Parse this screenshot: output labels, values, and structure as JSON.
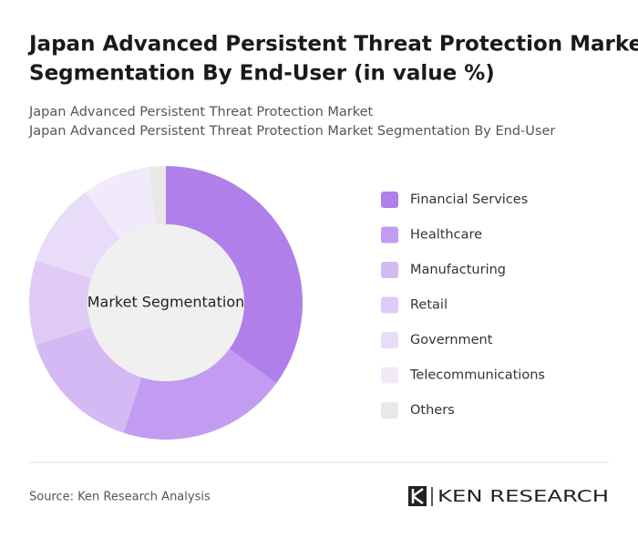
{
  "chart_data": {
    "type": "donut",
    "title": [
      "Japan Advanced Persistent Threat Protection Market",
      "Segmentation By End-User (in value %)"
    ],
    "subtitle": [
      "Japan Advanced Persistent Threat Protection Market",
      "Japan Advanced Persistent Threat Protection Market Segmentation By End-User"
    ],
    "center_label": "Market Segmentation",
    "categories": [
      "Financial Services",
      "Healthcare",
      "Manufacturing",
      "Retail",
      "Government",
      "Telecommunications",
      "Others"
    ],
    "values": [
      35,
      20,
      15,
      10,
      10,
      8,
      2
    ],
    "colors": [
      "#b07fe9",
      "#c29cf0",
      "#d4b9f4",
      "#dfcbf6",
      "#e8dcf8",
      "#f0eafb",
      "#e8e8e8"
    ]
  },
  "source": "Source: Ken Research Analysis",
  "logo": "KEN RESEARCH"
}
